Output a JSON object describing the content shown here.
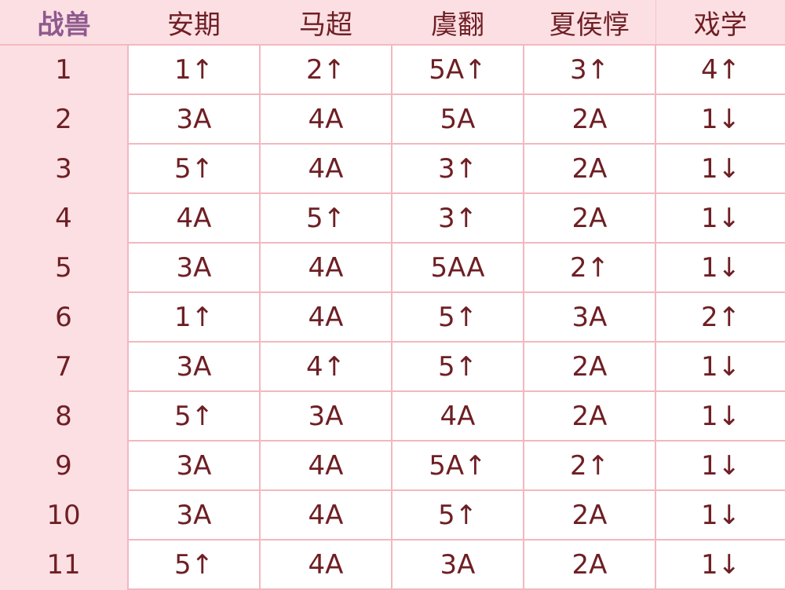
{
  "headers": [
    "战兽",
    "安期",
    "马超",
    "虞翻",
    "夏侯惇",
    "戏学"
  ],
  "colors": {
    "header_bg": "#fcdfe3",
    "border": "#f2b8c0",
    "text": "#6e1f24",
    "first_header": "#8e5a8e"
  },
  "rows": [
    [
      "1",
      "1↑",
      "2↑",
      "5A↑",
      "3↑",
      "4↑"
    ],
    [
      "2",
      "3A",
      "4A",
      "5A",
      "2A",
      "1↓"
    ],
    [
      "3",
      "5↑",
      "4A",
      "3↑",
      "2A",
      "1↓"
    ],
    [
      "4",
      "4A",
      "5↑",
      "3↑",
      "2A",
      "1↓"
    ],
    [
      "5",
      "3A",
      "4A",
      "5AA",
      "2↑",
      "1↓"
    ],
    [
      "6",
      "1↑",
      "4A",
      "5↑",
      "3A",
      "2↑"
    ],
    [
      "7",
      "3A",
      "4↑",
      "5↑",
      "2A",
      "1↓"
    ],
    [
      "8",
      "5↑",
      "3A",
      "4A",
      "2A",
      "1↓"
    ],
    [
      "9",
      "3A",
      "4A",
      "5A↑",
      "2↑",
      "1↓"
    ],
    [
      "10",
      "3A",
      "4A",
      "5↑",
      "2A",
      "1↓"
    ],
    [
      "11",
      "5↑",
      "4A",
      "3A",
      "2A",
      "1↓"
    ]
  ]
}
